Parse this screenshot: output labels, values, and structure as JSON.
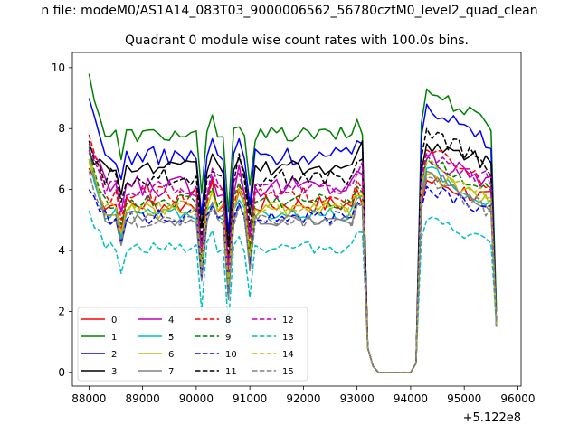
{
  "chart_data": {
    "type": "line",
    "suptitle": "n file: modeM0/AS1A14_083T03_9000006562_56780cztM0_level2_quad_clean",
    "title": "Quadrant 0 module wise count rates with 100.0s bins.",
    "xlabel": "",
    "ylabel": "",
    "x_offset_text": "+5.122e8",
    "xlim": [
      87690,
      96060
    ],
    "ylim": [
      -0.45,
      10.5
    ],
    "x_ticks": [
      88000,
      89000,
      90000,
      91000,
      92000,
      93000,
      94000,
      95000,
      96000
    ],
    "x_tick_labels": [
      "88000",
      "89000",
      "90000",
      "91000",
      "92000",
      "93000",
      "94000",
      "95000",
      "96000"
    ],
    "y_ticks": [
      0,
      2,
      4,
      6,
      8,
      10
    ],
    "y_tick_labels": [
      "0",
      "2",
      "4",
      "6",
      "8",
      "10"
    ],
    "legend_position": "lower-left",
    "legend_columns": 4,
    "x_start": 88000,
    "x_step": 100,
    "series": [
      {
        "name": "0",
        "color": "#ff0000",
        "dash": "solid",
        "pre": 6.7,
        "post": 6.3,
        "lvl": 5.5,
        "amp": 0.3,
        "cut": 5.5
      },
      {
        "name": "1",
        "color": "#008000",
        "dash": "solid",
        "pre": 9.8,
        "post": 9.3,
        "lvl": 7.8,
        "amp": 0.25,
        "cut": 7.8
      },
      {
        "name": "2",
        "color": "#0000ff",
        "dash": "solid",
        "pre": 9.0,
        "post": 8.8,
        "lvl": 7.1,
        "amp": 0.3,
        "cut": 7.5
      },
      {
        "name": "3",
        "color": "#000000",
        "dash": "solid",
        "pre": 7.2,
        "post": 7.5,
        "lvl": 6.7,
        "amp": 0.25,
        "cut": 7.6
      },
      {
        "name": "4",
        "color": "#bf00bf",
        "dash": "solid",
        "pre": 7.5,
        "post": 7.0,
        "lvl": 6.1,
        "amp": 0.35,
        "cut": 6.5
      },
      {
        "name": "5",
        "color": "#00bfbf",
        "dash": "solid",
        "pre": 7.0,
        "post": 6.7,
        "lvl": 5.2,
        "amp": 0.2,
        "cut": 5.8
      },
      {
        "name": "6",
        "color": "#bfbf00",
        "dash": "solid",
        "pre": 6.9,
        "post": 6.5,
        "lvl": 5.3,
        "amp": 0.25,
        "cut": 5.8
      },
      {
        "name": "7",
        "color": "#808080",
        "dash": "solid",
        "pre": 7.3,
        "post": 6.6,
        "lvl": 5.0,
        "amp": 0.2,
        "cut": 5.6
      },
      {
        "name": "8",
        "color": "#ff0000",
        "dash": "dashed",
        "pre": 7.8,
        "post": 7.3,
        "lvl": 5.8,
        "amp": 0.3,
        "cut": 6.0
      },
      {
        "name": "9",
        "color": "#008000",
        "dash": "dashed",
        "pre": 7.4,
        "post": 7.0,
        "lvl": 5.6,
        "amp": 0.25,
        "cut": 5.9
      },
      {
        "name": "10",
        "color": "#0000ff",
        "dash": "dashed",
        "pre": 6.0,
        "post": 6.1,
        "lvl": 5.1,
        "amp": 0.25,
        "cut": 5.4
      },
      {
        "name": "11",
        "color": "#000000",
        "dash": "dashed",
        "pre": 7.6,
        "post": 8.0,
        "lvl": 6.4,
        "amp": 0.3,
        "cut": 7.0
      },
      {
        "name": "12",
        "color": "#bf00bf",
        "dash": "dashed",
        "pre": 7.3,
        "post": 7.2,
        "lvl": 6.0,
        "amp": 0.3,
        "cut": 6.9
      },
      {
        "name": "13",
        "color": "#00bfbf",
        "dash": "dashed",
        "pre": 5.3,
        "post": 5.0,
        "lvl": 4.1,
        "amp": 0.2,
        "cut": 4.6
      },
      {
        "name": "14",
        "color": "#bfbf00",
        "dash": "dashed",
        "pre": 7.0,
        "post": 6.9,
        "lvl": 5.4,
        "amp": 0.25,
        "cut": 5.9
      },
      {
        "name": "15",
        "color": "#808080",
        "dash": "dashed",
        "pre": 6.6,
        "post": 6.4,
        "lvl": 5.0,
        "amp": 0.25,
        "cut": 5.5
      }
    ]
  }
}
